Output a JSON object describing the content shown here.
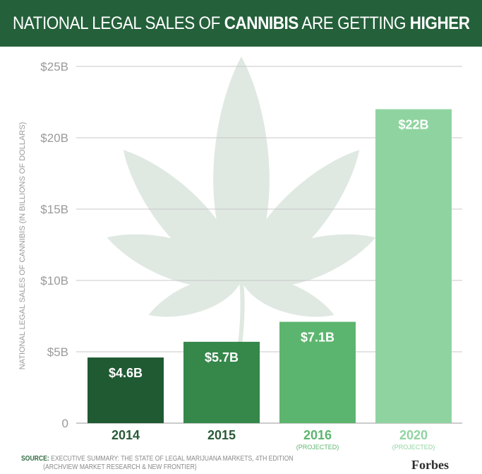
{
  "header": {
    "title_light_1": "NATIONAL LEGAL SALES",
    "title_mid": " OF ",
    "title_light_2": "CANNIBIS",
    "title_mid_2": " ARE GETTING ",
    "title_bold": "HIGHER"
  },
  "chart_data": {
    "type": "bar",
    "title": "NATIONAL LEGAL SALES OF CANNIBIS ARE GETTING HIGHER",
    "ylabel": "NATIONAL LEGAL SALES OF CANNIBIS (IN BILLIONS OF DOLLARS)",
    "xlabel": "",
    "categories": [
      "2014",
      "2015",
      "2016",
      "2020"
    ],
    "category_notes": [
      "",
      "",
      "(PROJECTED)",
      "(PROJECTED)"
    ],
    "values": [
      4.6,
      5.7,
      7.1,
      22
    ],
    "data_labels": [
      "$4.6B",
      "$5.7B",
      "$7.1B",
      "$22B"
    ],
    "ylim": [
      0,
      25
    ],
    "yticks": [
      0,
      5,
      10,
      15,
      20,
      25
    ],
    "ytick_labels": [
      "0",
      "$5B",
      "$10B",
      "$15B",
      "$20B",
      "$25B"
    ],
    "grid": true,
    "bar_colors": [
      "#1f5a33",
      "#35874a",
      "#5cb56e",
      "#8fd4a0"
    ]
  },
  "footer": {
    "source_label": "SOURCE:",
    "source_line1": " EXECUTIVE SUMMARY: THE STATE OF LEGAL MARIJUANA MARKETS, 4TH EDITION",
    "source_line2": "(ARCHVIEW MARKET RESEARCH & NEW FRONTIER)",
    "brand": "Forbes"
  },
  "colors": {
    "header_bg": "#24603a",
    "leaf": "#dfe9e2",
    "grid": "#c8c8c8",
    "tick_text": "#9a9a9a",
    "category_text": "#2a5a38"
  }
}
